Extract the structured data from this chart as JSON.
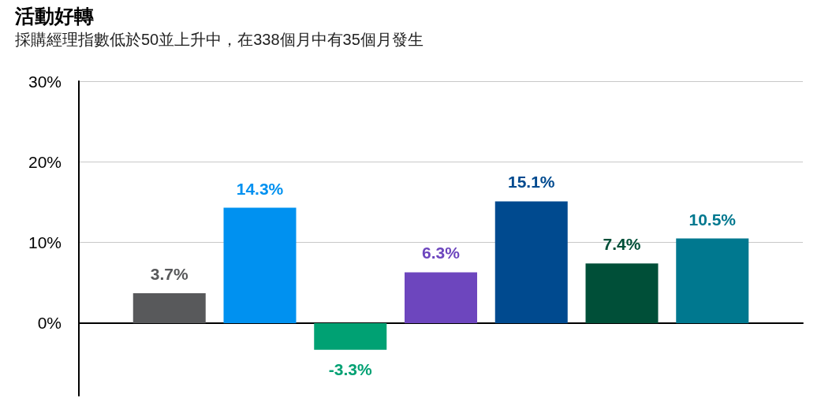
{
  "chart_data": {
    "type": "bar",
    "title": "活動好轉",
    "subtitle": "採購經理指數低於50並上升中，在338個月中有35個月發生",
    "categories": [
      null,
      null,
      null,
      null,
      null,
      null,
      null
    ],
    "values": [
      3.7,
      14.3,
      -3.3,
      6.3,
      15.1,
      7.4,
      10.5
    ],
    "colors": [
      "#58595b",
      "#0091f0",
      "#00a173",
      "#6d46be",
      "#004a8f",
      "#004f38",
      "#00788f"
    ],
    "value_labels": [
      "3.7%",
      "14.3%",
      "-3.3%",
      "6.3%",
      "15.1%",
      "7.4%",
      "10.5%"
    ],
    "ylim": [
      -9,
      30
    ],
    "yticks": [
      {
        "value": 0,
        "label": "0%"
      },
      {
        "value": 10,
        "label": "10%"
      },
      {
        "value": 20,
        "label": "20%"
      },
      {
        "value": 30,
        "label": "30%"
      }
    ],
    "grid": "y"
  }
}
